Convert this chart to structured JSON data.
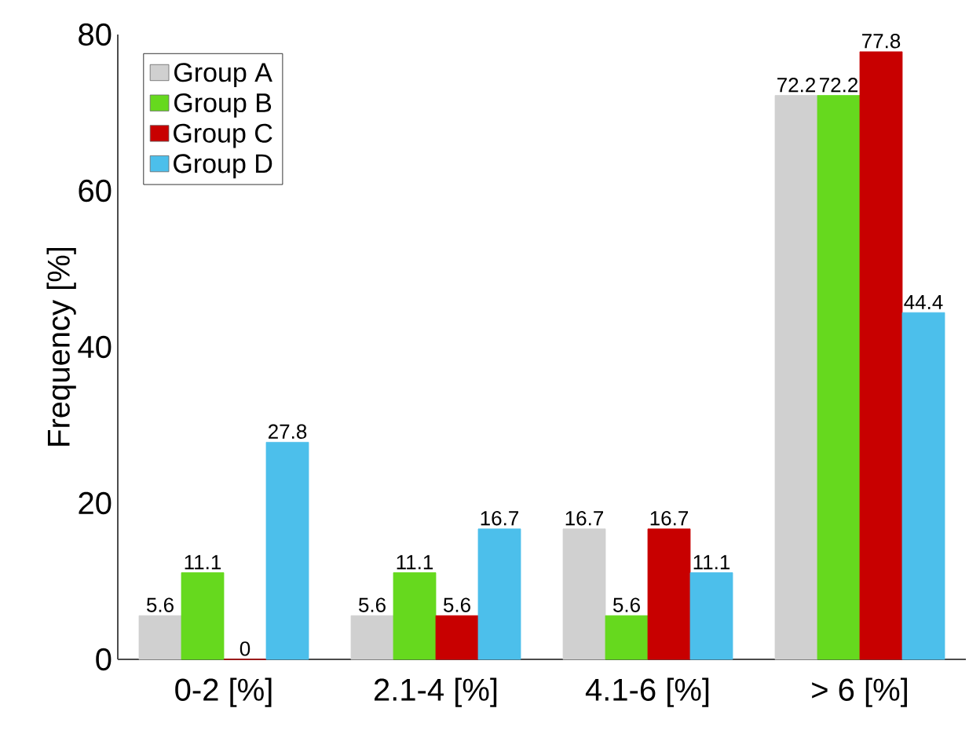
{
  "chart_data": {
    "type": "bar",
    "ylabel": "Frequency [%]",
    "categories": [
      "0-2 [%]",
      "2.1-4 [%]",
      "4.1-6 [%]",
      "> 6 [%]"
    ],
    "series": [
      {
        "name": "Group A",
        "color": "#d0d0d0",
        "values": [
          5.6,
          5.6,
          16.7,
          72.2
        ]
      },
      {
        "name": "Group B",
        "color": "#66d91e",
        "values": [
          11.1,
          11.1,
          5.6,
          72.2
        ]
      },
      {
        "name": "Group C",
        "color": "#c80000",
        "values": [
          0,
          5.6,
          16.7,
          77.8
        ]
      },
      {
        "name": "Group D",
        "color": "#4cbfeb",
        "values": [
          27.8,
          16.7,
          11.1,
          44.4
        ]
      }
    ],
    "ylim": [
      0,
      80
    ],
    "yticks": [
      0,
      20,
      40,
      60,
      80
    ],
    "legend": "top left",
    "data_labels": true
  }
}
